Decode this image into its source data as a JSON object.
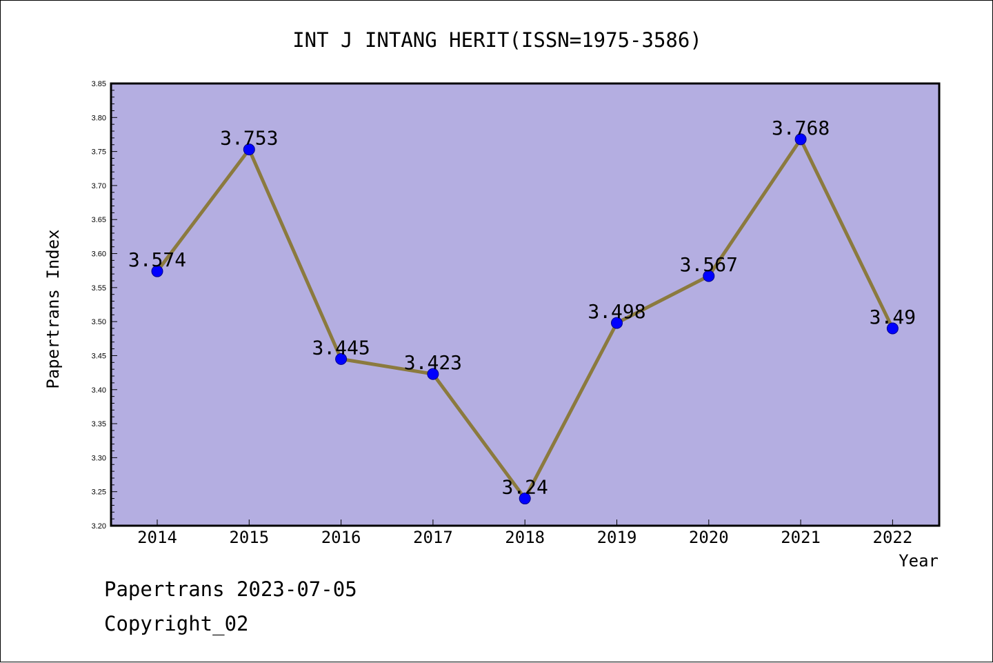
{
  "chart_data": {
    "type": "line",
    "title": "INT J INTANG HERIT(ISSN=1975-3586)",
    "xlabel": "Year",
    "ylabel": "Papertrans Index",
    "categories": [
      "2014",
      "2015",
      "2016",
      "2017",
      "2018",
      "2019",
      "2020",
      "2021",
      "2022"
    ],
    "series": [
      {
        "values": [
          3.574,
          3.753,
          3.445,
          3.423,
          3.24,
          3.498,
          3.567,
          3.768,
          3.49
        ],
        "labels": [
          "3.574",
          "3.753",
          "3.445",
          "3.423",
          "3.24",
          "3.498",
          "3.567",
          "3.768",
          "3.49"
        ]
      }
    ],
    "ylim": [
      3.2,
      3.85
    ],
    "ytick_step": 0.05,
    "grid": false,
    "colors": {
      "plot_background": "#b4aee1",
      "line": "#8b7a3e",
      "marker": "#0000ff",
      "marker_edge": "#00008b",
      "axis": "#000000"
    }
  },
  "footer": {
    "date_line": "Papertrans 2023-07-05",
    "copyright_line": "Copyright_02"
  }
}
